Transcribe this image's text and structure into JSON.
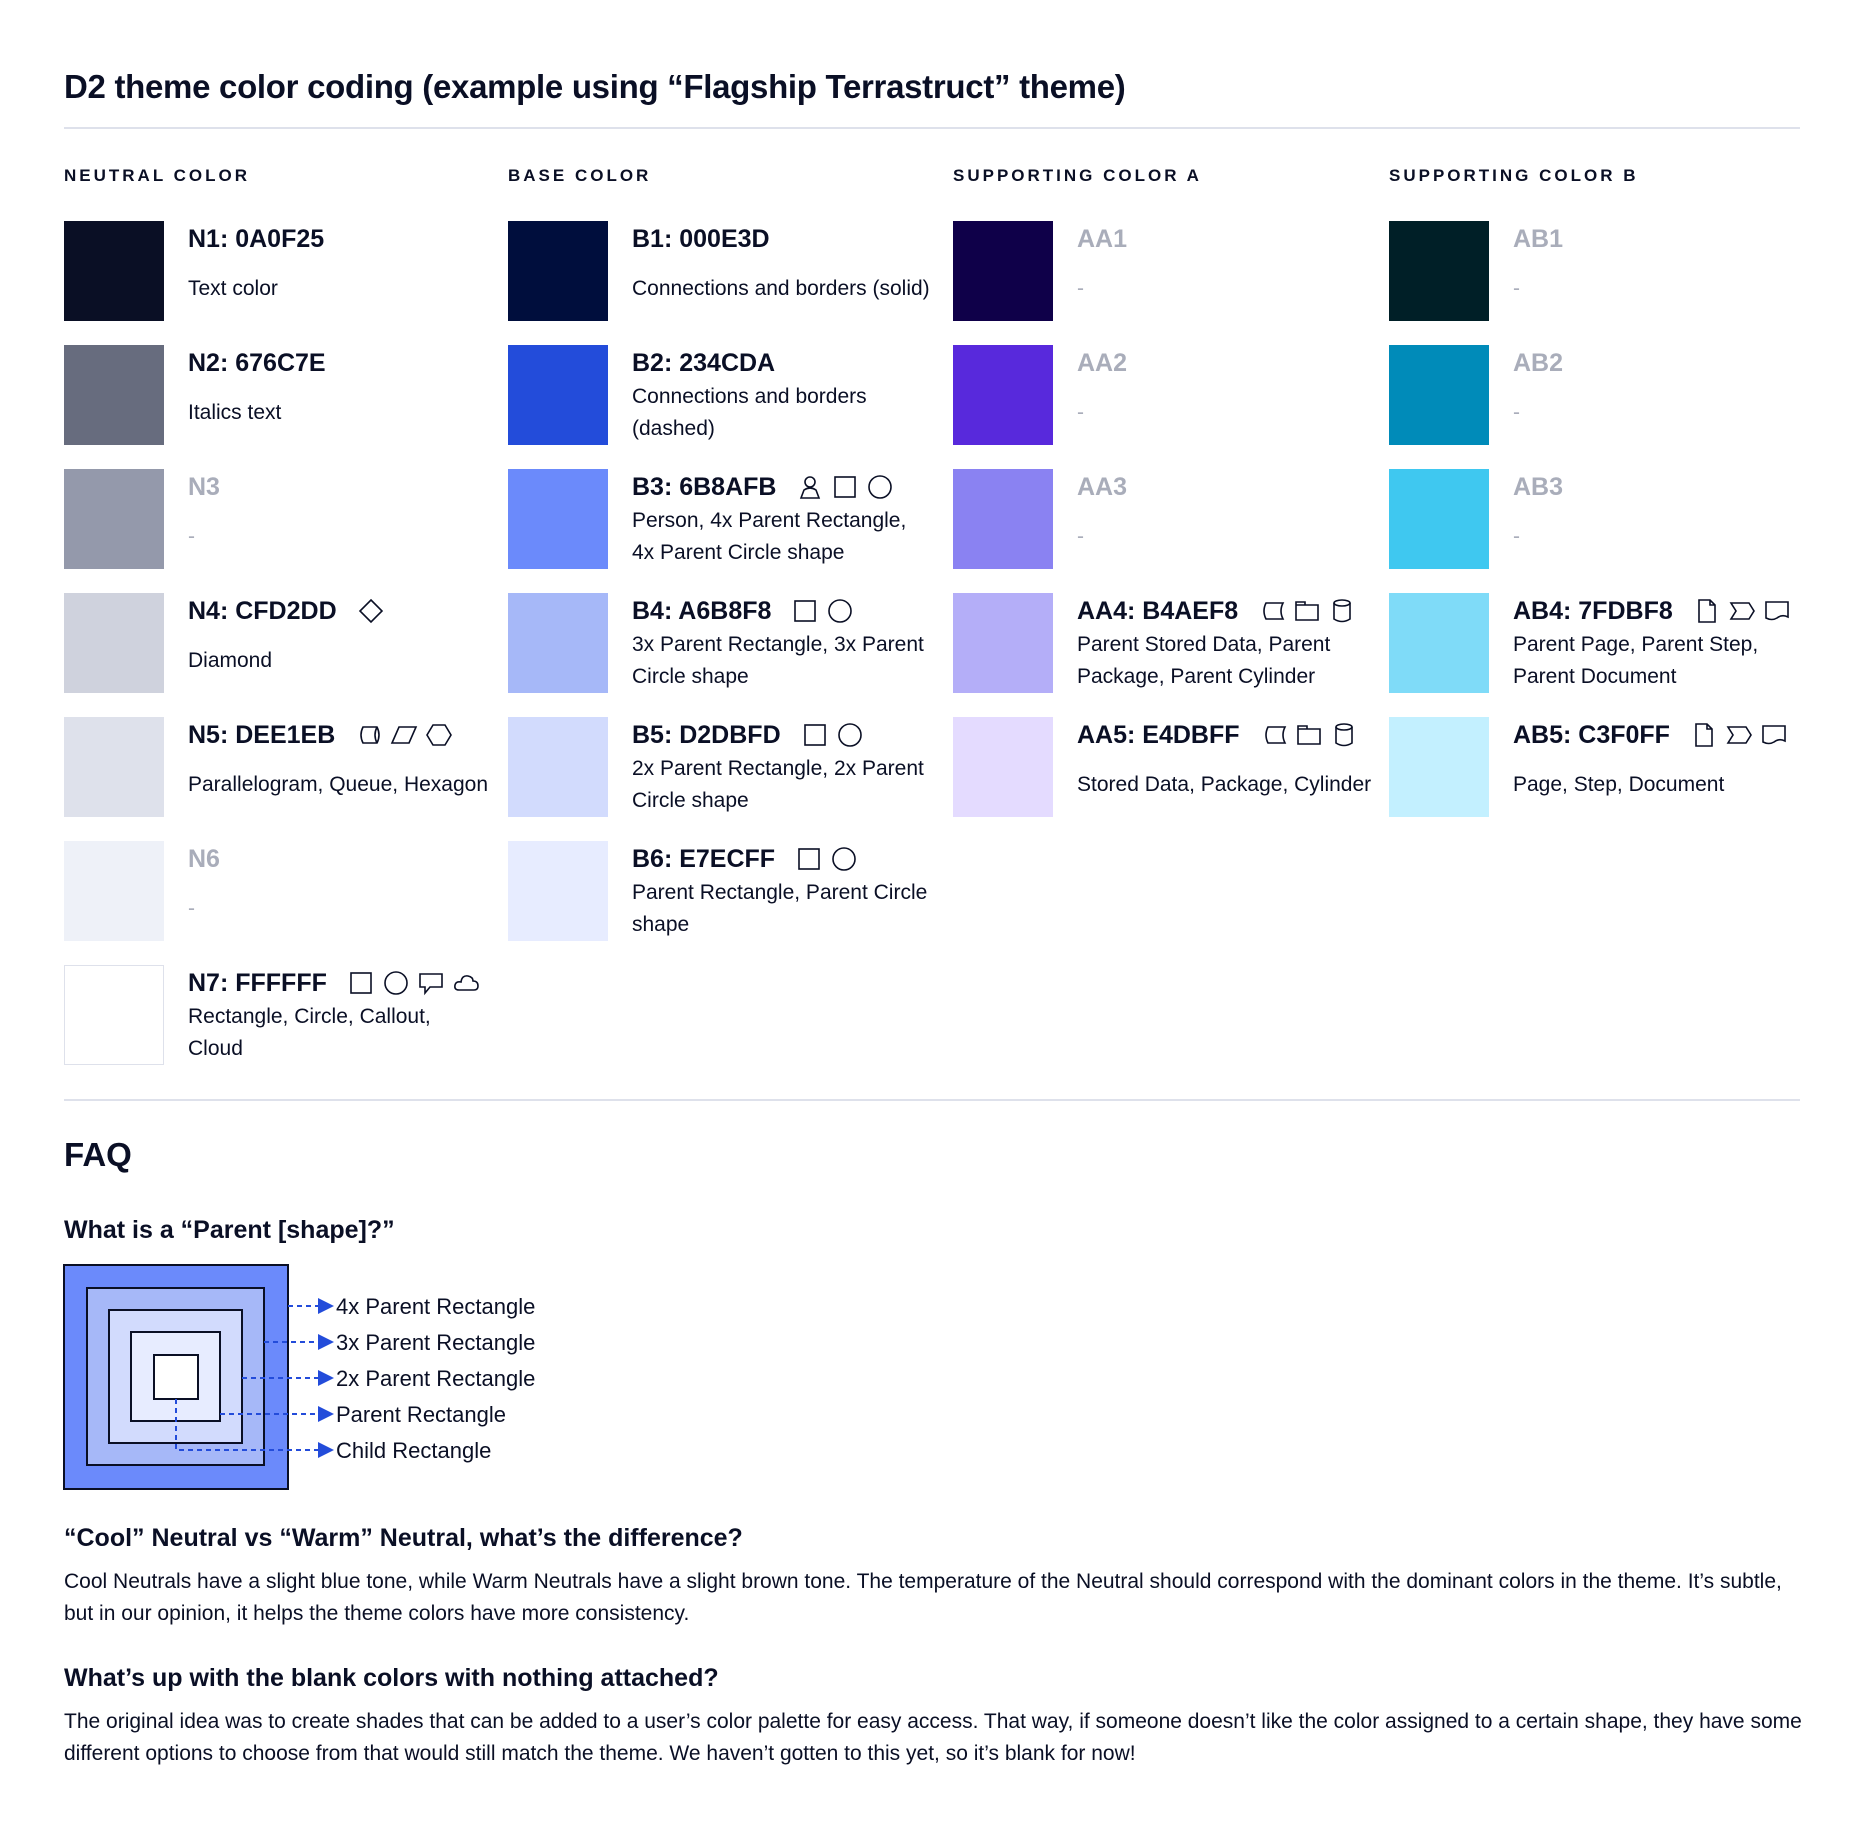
{
  "title": "D2 theme color coding (example using “Flagship Terrastruct” theme)",
  "columns": [
    {
      "heading": "NEUTRAL COLOR",
      "items": [
        {
          "label": "N1: 0A0F25",
          "desc": "Text color",
          "color": "#0A0F25",
          "icons": []
        },
        {
          "label": "N2: 676C7E",
          "desc": "Italics text",
          "color": "#676C7E",
          "icons": []
        },
        {
          "label": "N3",
          "desc": "-",
          "color": "#9499AB",
          "muted": true,
          "icons": []
        },
        {
          "label": "N4: CFD2DD",
          "desc": "Diamond",
          "color": "#CFD2DD",
          "icons": [
            "diamond"
          ]
        },
        {
          "label": "N5: DEE1EB",
          "desc": "Parallelogram, Queue, Hexagon",
          "color": "#DEE1EB",
          "icons": [
            "queue",
            "parallelogram",
            "hexagon"
          ]
        },
        {
          "label": "N6",
          "desc": "-",
          "color": "#EEF1F8",
          "muted": true,
          "icons": []
        },
        {
          "label": "N7: FFFFFF",
          "desc": "Rectangle, Circle, Callout, Cloud",
          "color": "#FFFFFF",
          "border": true,
          "icons": [
            "rectangle",
            "circle",
            "callout",
            "cloud"
          ]
        }
      ]
    },
    {
      "heading": "BASE COLOR",
      "items": [
        {
          "label": "B1: 000E3D",
          "desc": "Connections and borders (solid)",
          "color": "#000E3D",
          "icons": []
        },
        {
          "label": "B2: 234CDA",
          "desc": "Connections and borders (dashed)",
          "color": "#234CDA",
          "icons": []
        },
        {
          "label": "B3: 6B8AFB",
          "desc": "Person, 4x Parent Rectangle, 4x Parent Circle shape",
          "color": "#6B8AFB",
          "icons": [
            "person",
            "rectangle",
            "circle"
          ]
        },
        {
          "label": "B4: A6B8F8",
          "desc": "3x Parent Rectangle, 3x Parent Circle shape",
          "color": "#A6B8F8",
          "icons": [
            "rectangle",
            "circle"
          ]
        },
        {
          "label": "B5: D2DBFD",
          "desc": "2x Parent Rectangle, 2x Parent Circle shape",
          "color": "#D2DBFD",
          "icons": [
            "rectangle",
            "circle"
          ]
        },
        {
          "label": "B6: E7ECFF",
          "desc": "Parent Rectangle, Parent Circle shape",
          "color": "#E7ECFF",
          "icons": [
            "rectangle",
            "circle"
          ]
        }
      ]
    },
    {
      "heading": "SUPPORTING COLOR A",
      "items": [
        {
          "label": "AA1",
          "desc": "-",
          "color": "#0F0049",
          "muted": true,
          "icons": []
        },
        {
          "label": "AA2",
          "desc": "-",
          "color": "#5829DC",
          "muted": true,
          "icons": []
        },
        {
          "label": "AA3",
          "desc": "-",
          "color": "#8A82F2",
          "muted": true,
          "icons": []
        },
        {
          "label": "AA4: B4AEF8",
          "desc": "Parent Stored Data, Parent Package,  Parent Cylinder",
          "color": "#B4AEF8",
          "icons": [
            "stored-data",
            "package",
            "cylinder"
          ]
        },
        {
          "label": "AA5: E4DBFF",
          "desc": "Stored Data, Package, Cylinder",
          "color": "#E4DBFF",
          "icons": [
            "stored-data",
            "package",
            "cylinder"
          ]
        }
      ]
    },
    {
      "heading": "SUPPORTING COLOR B",
      "items": [
        {
          "label": "AB1",
          "desc": "-",
          "color": "#001F27",
          "muted": true,
          "icons": []
        },
        {
          "label": "AB2",
          "desc": "-",
          "color": "#008BB9",
          "muted": true,
          "icons": []
        },
        {
          "label": "AB3",
          "desc": "-",
          "color": "#3FC8F0",
          "muted": true,
          "icons": []
        },
        {
          "label": "AB4: 7FDBF8",
          "desc": "Parent Page, Parent Step, Parent Document",
          "color": "#7FDBF8",
          "icons": [
            "page",
            "step",
            "document"
          ]
        },
        {
          "label": "AB5: C3F0FF",
          "desc": "Page, Step, Document",
          "color": "#C3F0FF",
          "icons": [
            "page",
            "step",
            "document"
          ]
        }
      ]
    }
  ],
  "faq": {
    "heading": "FAQ",
    "q1": "What is a “Parent [shape]?”",
    "diagram_labels": [
      "4x Parent Rectangle",
      "3x Parent Rectangle",
      "2x Parent Rectangle",
      "Parent Rectangle",
      "Child Rectangle"
    ],
    "diagram_colors": [
      "#6B8AFB",
      "#A6B8F8",
      "#D2DBFD",
      "#E7ECFF",
      "#FFFFFF"
    ],
    "arrow_color": "#234CDA",
    "q2": "“Cool” Neutral vs “Warm” Neutral, what’s the difference?",
    "a2": "Cool Neutrals have a slight blue tone, while Warm Neutrals have a slight brown tone. The temperature of the Neutral should correspond with the dominant colors in the theme. It’s subtle, but in our opinion, it helps the theme colors have more consistency.",
    "q3": "What’s up with the blank colors with nothing attached?",
    "a3": "The original idea was to create shades that can be added to a user’s color palette for easy access. That way, if someone doesn’t like the color assigned to a certain shape, they have some different options to choose from that would still match the theme. We haven’t gotten to this yet, so it’s blank for now!"
  }
}
